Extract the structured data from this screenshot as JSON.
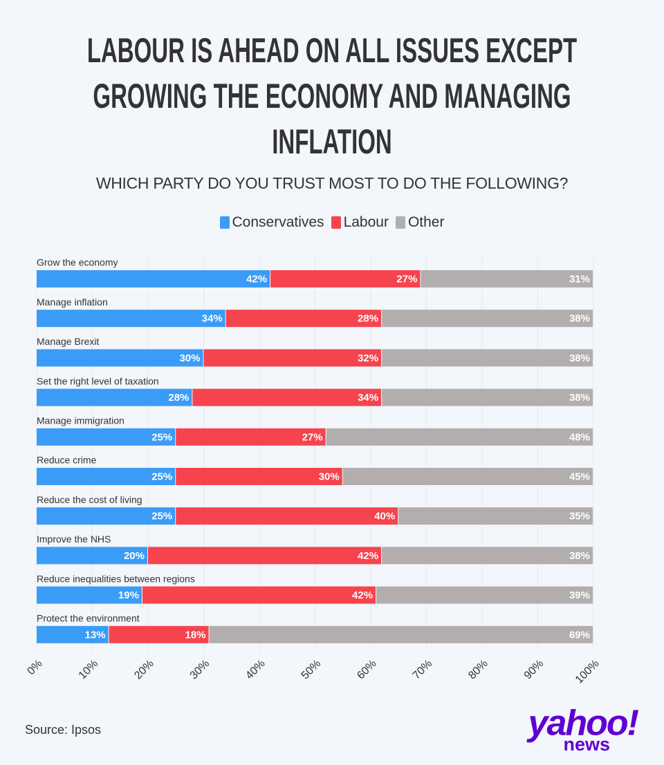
{
  "chart_data": {
    "type": "stacked_bar_horizontal",
    "title": "LABOUR IS AHEAD ON ALL ISSUES EXCEPT GROWING THE ECONOMY AND MANAGING INFLATION",
    "subtitle": "WHICH PARTY DO YOU TRUST MOST TO DO THE FOLLOWING?",
    "categories": [
      "Grow the economy",
      "Manage inflation",
      "Manage Brexit",
      "Set the right level of taxation",
      "Manage immigration",
      "Reduce crime",
      "Reduce the cost of living",
      "Improve the NHS",
      "Reduce inequalities between regions",
      "Protect the environment"
    ],
    "series": [
      {
        "name": "Conservatives",
        "color": "#3a9cf6",
        "values": [
          42,
          34,
          30,
          28,
          25,
          25,
          25,
          20,
          19,
          13
        ],
        "value_labels": [
          "42%",
          "34%",
          "30%",
          "28%",
          "25%",
          "25%",
          "25%",
          "20%",
          "19%",
          "13%"
        ]
      },
      {
        "name": "Labour",
        "color": "#f5444e",
        "values": [
          27,
          28,
          32,
          34,
          27,
          30,
          40,
          42,
          42,
          18
        ],
        "value_labels": [
          "27%",
          "28%",
          "32%",
          "34%",
          "27%",
          "30%",
          "40%",
          "42%",
          "42%",
          "18%"
        ]
      },
      {
        "name": "Other",
        "color": "#b3aeae",
        "values": [
          31,
          38,
          38,
          38,
          48,
          45,
          35,
          38,
          39,
          69
        ],
        "value_labels": [
          "31%",
          "38%",
          "38%",
          "38%",
          "48%",
          "45%",
          "35%",
          "38%",
          "39%",
          "69%"
        ]
      }
    ],
    "xlim": [
      0,
      100
    ],
    "xticks": [
      {
        "value": 0,
        "label": "0%"
      },
      {
        "value": 10,
        "label": "10%"
      },
      {
        "value": 20,
        "label": "20%"
      },
      {
        "value": 30,
        "label": "30%"
      },
      {
        "value": 40,
        "label": "40%"
      },
      {
        "value": 50,
        "label": "50%"
      },
      {
        "value": 60,
        "label": "60%"
      },
      {
        "value": 70,
        "label": "70%"
      },
      {
        "value": 80,
        "label": "80%"
      },
      {
        "value": 90,
        "label": "90%"
      },
      {
        "value": 100,
        "label": "100%"
      }
    ],
    "grid": true,
    "legend": "top",
    "source": "Source: Ipsos"
  },
  "logo": {
    "brand": "yahoo!",
    "sub": "news"
  }
}
